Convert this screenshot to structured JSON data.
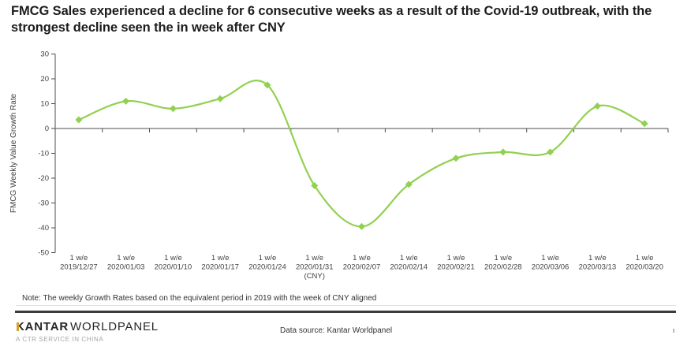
{
  "header": {
    "title": "FMCG Sales experienced a decline for 6 consecutive weeks as a result of the Covid-19 outbreak, with the strongest decline seen the in week after CNY"
  },
  "note": "Note: The weekly Growth Rates based on the equivalent period in 2019 with the week of CNY aligned",
  "footer": {
    "logo_bold": "KANTAR",
    "logo_light": "WORLDPANEL",
    "logo_subtitle": "A CTR SERVICE IN CHINA",
    "data_source": "Data source: Kantar Worldpanel",
    "logo_gold_color": "#D7A127"
  },
  "chart_data": {
    "type": "line",
    "smoothed": true,
    "title": "",
    "xlabel": "",
    "ylabel": "FMCG Weekly  Value Growth Rate",
    "ylim": [
      -50,
      30
    ],
    "y_ticks": [
      30,
      20,
      10,
      0,
      -10,
      -20,
      -30,
      -40,
      -50
    ],
    "x_tick_prefix": "1 w/e",
    "categories": [
      "2019/12/27",
      "2020/01/03",
      "2020/01/10",
      "2020/01/17",
      "2020/01/24",
      "2020/01/31",
      "2020/02/07",
      "2020/02/14",
      "2020/02/21",
      "2020/02/28",
      "2020/03/06",
      "2020/03/13",
      "2020/03/20"
    ],
    "annotation_index": 5,
    "annotation_label": "(CNY)",
    "series": [
      {
        "name": "FMCG Weekly Value Growth Rate",
        "values": [
          3.5,
          11,
          8,
          12,
          17.5,
          -23,
          -39.5,
          -22.5,
          -12,
          -9.5,
          -9.5,
          9,
          2
        ]
      }
    ],
    "line_color": "#92D050",
    "marker": "diamond",
    "axis_color": "#4d4d4d",
    "grid": false,
    "legend": false
  }
}
